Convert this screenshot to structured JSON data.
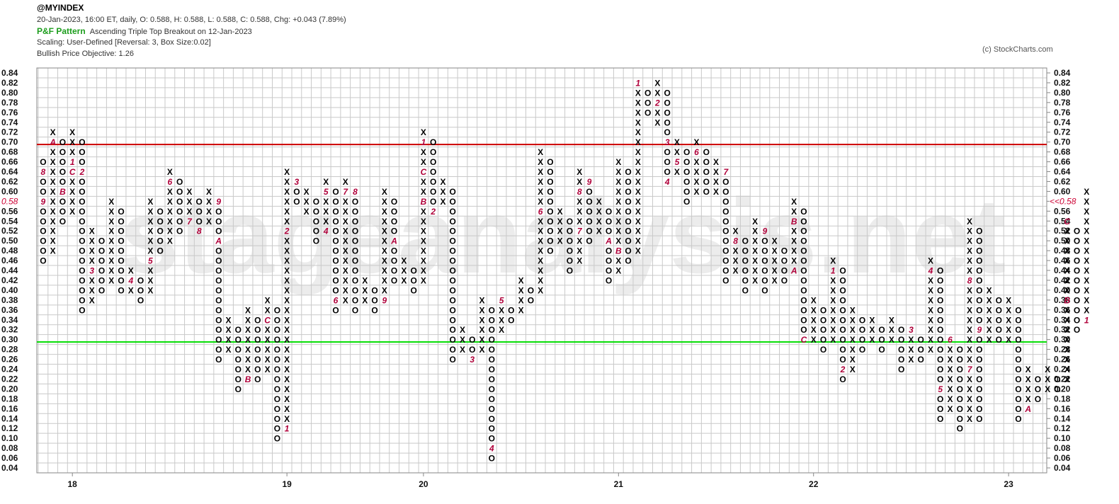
{
  "header": {
    "symbol": "@MYINDEX",
    "ohlc": "20-Jan-2023, 16:00 ET, daily, O: 0.588, H: 0.588, L: 0.588, C: 0.588, Chg: +0.043 (7.89%)",
    "pattern_label": "P&F Pattern",
    "pattern_text": "Ascending Triple Top Breakout on 12-Jan-2023",
    "scaling": "Scaling: User-Defined [Reversal: 3, Box Size:0.02]",
    "objective": "Bullish Price Objective: 1.26",
    "copyright": "(c) StockCharts.com"
  },
  "chart_data": {
    "type": "point-and-figure",
    "box_size": 0.02,
    "reversal": 3,
    "y_range": [
      0.04,
      0.84
    ],
    "y_ticks": [
      "0.84",
      "0.82",
      "0.80",
      "0.78",
      "0.76",
      "0.74",
      "0.72",
      "0.70",
      "0.68",
      "0.66",
      "0.64",
      "0.62",
      "0.60",
      "0.58",
      "0.56",
      "0.54",
      "0.52",
      "0.50",
      "0.48",
      "0.46",
      "0.44",
      "0.42",
      "0.40",
      "0.38",
      "0.36",
      "0.34",
      "0.32",
      "0.30",
      "0.28",
      "0.26",
      "0.24",
      "0.22",
      "0.20",
      "0.18",
      "0.16",
      "0.14",
      "0.12",
      "0.10",
      "0.08",
      "0.06",
      "0.04"
    ],
    "x_labels": [
      {
        "label": "18",
        "column": 3
      },
      {
        "label": "19",
        "column": 25
      },
      {
        "label": "20",
        "column": 39
      },
      {
        "label": "21",
        "column": 59
      },
      {
        "label": "22",
        "column": 79
      },
      {
        "label": "23",
        "column": 99
      }
    ],
    "last_price_label": "0.58",
    "last_price_marker": "<<0.58",
    "horizontal_lines": [
      {
        "level": 0.695,
        "color": "#cc0000"
      },
      {
        "level": 0.295,
        "color": "#00dd00"
      }
    ],
    "watermark": "stageanalysis.net",
    "columns": [
      {
        "t": "O",
        "hi": 0.66,
        "lo": 0.46,
        "m": {
          "0.64": "8",
          "0.58": "9"
        }
      },
      {
        "t": "X",
        "hi": 0.72,
        "lo": 0.48,
        "m": {
          "0.70": "A"
        }
      },
      {
        "t": "O",
        "hi": 0.7,
        "lo": 0.54,
        "m": {
          "0.60": "B"
        }
      },
      {
        "t": "X",
        "hi": 0.72,
        "lo": 0.56,
        "m": {
          "0.66": "1",
          "0.64": "C"
        }
      },
      {
        "t": "O",
        "hi": 0.7,
        "lo": 0.36,
        "m": {
          "0.64": "2"
        }
      },
      {
        "t": "X",
        "hi": 0.52,
        "lo": 0.38,
        "m": {
          "0.44": "3"
        }
      },
      {
        "t": "O",
        "hi": 0.5,
        "lo": 0.4
      },
      {
        "t": "X",
        "hi": 0.58,
        "lo": 0.42
      },
      {
        "t": "O",
        "hi": 0.56,
        "lo": 0.4
      },
      {
        "t": "X",
        "hi": 0.44,
        "lo": 0.4,
        "m": {
          "0.42": "4"
        }
      },
      {
        "t": "O",
        "hi": 0.42,
        "lo": 0.38
      },
      {
        "t": "X",
        "hi": 0.58,
        "lo": 0.4,
        "m": {
          "0.46": "5"
        }
      },
      {
        "t": "O",
        "hi": 0.56,
        "lo": 0.48
      },
      {
        "t": "X",
        "hi": 0.64,
        "lo": 0.5,
        "m": {
          "0.62": "6"
        }
      },
      {
        "t": "O",
        "hi": 0.62,
        "lo": 0.52
      },
      {
        "t": "X",
        "hi": 0.6,
        "lo": 0.54,
        "m": {
          "0.54": "7"
        }
      },
      {
        "t": "O",
        "hi": 0.58,
        "lo": 0.52,
        "m": {
          "0.52": "8"
        }
      },
      {
        "t": "X",
        "hi": 0.6,
        "lo": 0.54
      },
      {
        "t": "O",
        "hi": 0.58,
        "lo": 0.26,
        "m": {
          "0.58": "9",
          "0.50": "A"
        }
      },
      {
        "t": "X",
        "hi": 0.34,
        "lo": 0.28
      },
      {
        "t": "O",
        "hi": 0.32,
        "lo": 0.2
      },
      {
        "t": "X",
        "hi": 0.36,
        "lo": 0.22,
        "m": {
          "0.22": "B"
        }
      },
      {
        "t": "O",
        "hi": 0.34,
        "lo": 0.22
      },
      {
        "t": "X",
        "hi": 0.38,
        "lo": 0.24,
        "m": {
          "0.34": "C"
        }
      },
      {
        "t": "O",
        "hi": 0.36,
        "lo": 0.1
      },
      {
        "t": "X",
        "hi": 0.64,
        "lo": 0.12,
        "m": {
          "0.52": "2",
          "0.12": "1"
        }
      },
      {
        "t": "O",
        "hi": 0.62,
        "lo": 0.58,
        "m": {
          "0.62": "3"
        }
      },
      {
        "t": "X",
        "hi": 0.6,
        "lo": 0.56
      },
      {
        "t": "O",
        "hi": 0.58,
        "lo": 0.5
      },
      {
        "t": "X",
        "hi": 0.62,
        "lo": 0.52,
        "m": {
          "0.60": "5",
          "0.52": "4"
        }
      },
      {
        "t": "O",
        "hi": 0.6,
        "lo": 0.36,
        "m": {
          "0.38": "6"
        }
      },
      {
        "t": "X",
        "hi": 0.62,
        "lo": 0.38,
        "m": {
          "0.60": "7"
        }
      },
      {
        "t": "O",
        "hi": 0.6,
        "lo": 0.36,
        "m": {
          "0.60": "8"
        }
      },
      {
        "t": "X",
        "hi": 0.42,
        "lo": 0.38
      },
      {
        "t": "O",
        "hi": 0.4,
        "lo": 0.36
      },
      {
        "t": "X",
        "hi": 0.6,
        "lo": 0.38,
        "m": {
          "0.38": "9"
        }
      },
      {
        "t": "O",
        "hi": 0.58,
        "lo": 0.42,
        "m": {
          "0.50": "A"
        }
      },
      {
        "t": "X",
        "hi": 0.46,
        "lo": 0.42
      },
      {
        "t": "O",
        "hi": 0.44,
        "lo": 0.4
      },
      {
        "t": "X",
        "hi": 0.72,
        "lo": 0.42,
        "m": {
          "0.70": "1",
          "0.64": "C",
          "0.58": "B"
        }
      },
      {
        "t": "O",
        "hi": 0.7,
        "lo": 0.56,
        "m": {
          "0.56": "2"
        }
      },
      {
        "t": "X",
        "hi": 0.62,
        "lo": 0.58
      },
      {
        "t": "O",
        "hi": 0.6,
        "lo": 0.26
      },
      {
        "t": "X",
        "hi": 0.32,
        "lo": 0.28
      },
      {
        "t": "O",
        "hi": 0.3,
        "lo": 0.26,
        "m": {
          "0.26": "3"
        }
      },
      {
        "t": "X",
        "hi": 0.38,
        "lo": 0.28
      },
      {
        "t": "O",
        "hi": 0.36,
        "lo": 0.06,
        "m": {
          "0.08": "4"
        }
      },
      {
        "t": "X",
        "hi": 0.38,
        "lo": 0.32,
        "m": {
          "0.38": "5"
        }
      },
      {
        "t": "O",
        "hi": 0.36,
        "lo": 0.34
      },
      {
        "t": "X",
        "hi": 0.42,
        "lo": 0.36
      },
      {
        "t": "O",
        "hi": 0.4,
        "lo": 0.38
      },
      {
        "t": "X",
        "hi": 0.68,
        "lo": 0.4,
        "m": {
          "0.56": "6"
        }
      },
      {
        "t": "O",
        "hi": 0.66,
        "lo": 0.48
      },
      {
        "t": "X",
        "hi": 0.56,
        "lo": 0.5
      },
      {
        "t": "O",
        "hi": 0.54,
        "lo": 0.44
      },
      {
        "t": "X",
        "hi": 0.64,
        "lo": 0.46,
        "m": {
          "0.60": "8",
          "0.52": "7"
        }
      },
      {
        "t": "O",
        "hi": 0.62,
        "lo": 0.5,
        "m": {
          "0.62": "9"
        }
      },
      {
        "t": "X",
        "hi": 0.58,
        "lo": 0.52
      },
      {
        "t": "O",
        "hi": 0.56,
        "lo": 0.42,
        "m": {
          "0.50": "A"
        }
      },
      {
        "t": "X",
        "hi": 0.66,
        "lo": 0.44,
        "m": {
          "0.48": "B"
        }
      },
      {
        "t": "O",
        "hi": 0.64,
        "lo": 0.46
      },
      {
        "t": "X",
        "hi": 0.82,
        "lo": 0.48,
        "m": {
          "0.82": "1"
        }
      },
      {
        "t": "O",
        "hi": 0.8,
        "lo": 0.76
      },
      {
        "t": "X",
        "hi": 0.82,
        "lo": 0.74,
        "m": {
          "0.78": "2"
        }
      },
      {
        "t": "O",
        "hi": 0.8,
        "lo": 0.62,
        "m": {
          "0.70": "3",
          "0.62": "4"
        }
      },
      {
        "t": "X",
        "hi": 0.7,
        "lo": 0.64,
        "m": {
          "0.66": "5"
        }
      },
      {
        "t": "O",
        "hi": 0.68,
        "lo": 0.58
      },
      {
        "t": "X",
        "hi": 0.7,
        "lo": 0.6,
        "m": {
          "0.68": "6"
        }
      },
      {
        "t": "O",
        "hi": 0.68,
        "lo": 0.6
      },
      {
        "t": "X",
        "hi": 0.66,
        "lo": 0.6
      },
      {
        "t": "O",
        "hi": 0.64,
        "lo": 0.42,
        "m": {
          "0.64": "7"
        }
      },
      {
        "t": "X",
        "hi": 0.52,
        "lo": 0.44,
        "m": {
          "0.50": "8"
        }
      },
      {
        "t": "O",
        "hi": 0.5,
        "lo": 0.4
      },
      {
        "t": "X",
        "hi": 0.54,
        "lo": 0.42
      },
      {
        "t": "O",
        "hi": 0.52,
        "lo": 0.4,
        "m": {
          "0.52": "9"
        }
      },
      {
        "t": "X",
        "hi": 0.5,
        "lo": 0.42
      },
      {
        "t": "O",
        "hi": 0.48,
        "lo": 0.42
      },
      {
        "t": "X",
        "hi": 0.58,
        "lo": 0.44,
        "m": {
          "0.54": "B",
          "0.44": "A"
        }
      },
      {
        "t": "O",
        "hi": 0.56,
        "lo": 0.3,
        "m": {
          "0.30": "C"
        }
      },
      {
        "t": "X",
        "hi": 0.38,
        "lo": 0.3
      },
      {
        "t": "O",
        "hi": 0.36,
        "lo": 0.28
      },
      {
        "t": "X",
        "hi": 0.46,
        "lo": 0.3,
        "m": {
          "0.44": "1"
        }
      },
      {
        "t": "O",
        "hi": 0.44,
        "lo": 0.22,
        "m": {
          "0.24": "2"
        }
      },
      {
        "t": "X",
        "hi": 0.36,
        "lo": 0.24
      },
      {
        "t": "O",
        "hi": 0.34,
        "lo": 0.28
      },
      {
        "t": "X",
        "hi": 0.34,
        "lo": 0.3
      },
      {
        "t": "O",
        "hi": 0.32,
        "lo": 0.28
      },
      {
        "t": "X",
        "hi": 0.34,
        "lo": 0.3
      },
      {
        "t": "O",
        "hi": 0.32,
        "lo": 0.24
      },
      {
        "t": "X",
        "hi": 0.32,
        "lo": 0.26,
        "m": {
          "0.32": "3"
        }
      },
      {
        "t": "O",
        "hi": 0.3,
        "lo": 0.26
      },
      {
        "t": "X",
        "hi": 0.46,
        "lo": 0.28,
        "m": {
          "0.44": "4"
        }
      },
      {
        "t": "O",
        "hi": 0.44,
        "lo": 0.14,
        "m": {
          "0.20": "5"
        }
      },
      {
        "t": "X",
        "hi": 0.3,
        "lo": 0.16,
        "m": {
          "0.30": "6"
        }
      },
      {
        "t": "O",
        "hi": 0.28,
        "lo": 0.12
      },
      {
        "t": "X",
        "hi": 0.54,
        "lo": 0.14,
        "m": {
          "0.42": "8",
          "0.24": "7"
        }
      },
      {
        "t": "O",
        "hi": 0.52,
        "lo": 0.14,
        "m": {
          "0.32": "9"
        }
      },
      {
        "t": "X",
        "hi": 0.4,
        "lo": 0.3
      },
      {
        "t": "O",
        "hi": 0.38,
        "lo": 0.3
      },
      {
        "t": "X",
        "hi": 0.38,
        "lo": 0.3
      },
      {
        "t": "O",
        "hi": 0.36,
        "lo": 0.14
      },
      {
        "t": "X",
        "hi": 0.24,
        "lo": 0.16,
        "m": {
          "0.16": "A"
        }
      },
      {
        "t": "O",
        "hi": 0.22,
        "lo": 0.18
      },
      {
        "t": "X",
        "hi": 0.24,
        "lo": 0.2
      },
      {
        "t": "O",
        "hi": 0.22,
        "lo": 0.2
      },
      {
        "t": "X",
        "hi": 0.54,
        "lo": 0.22,
        "m": {
          "0.54": "C",
          "0.38": "B"
        }
      },
      {
        "t": "O",
        "hi": 0.52,
        "lo": 0.32
      },
      {
        "t": "X",
        "hi": 0.6,
        "lo": 0.34,
        "m": {
          "0.34": "1"
        }
      }
    ]
  }
}
